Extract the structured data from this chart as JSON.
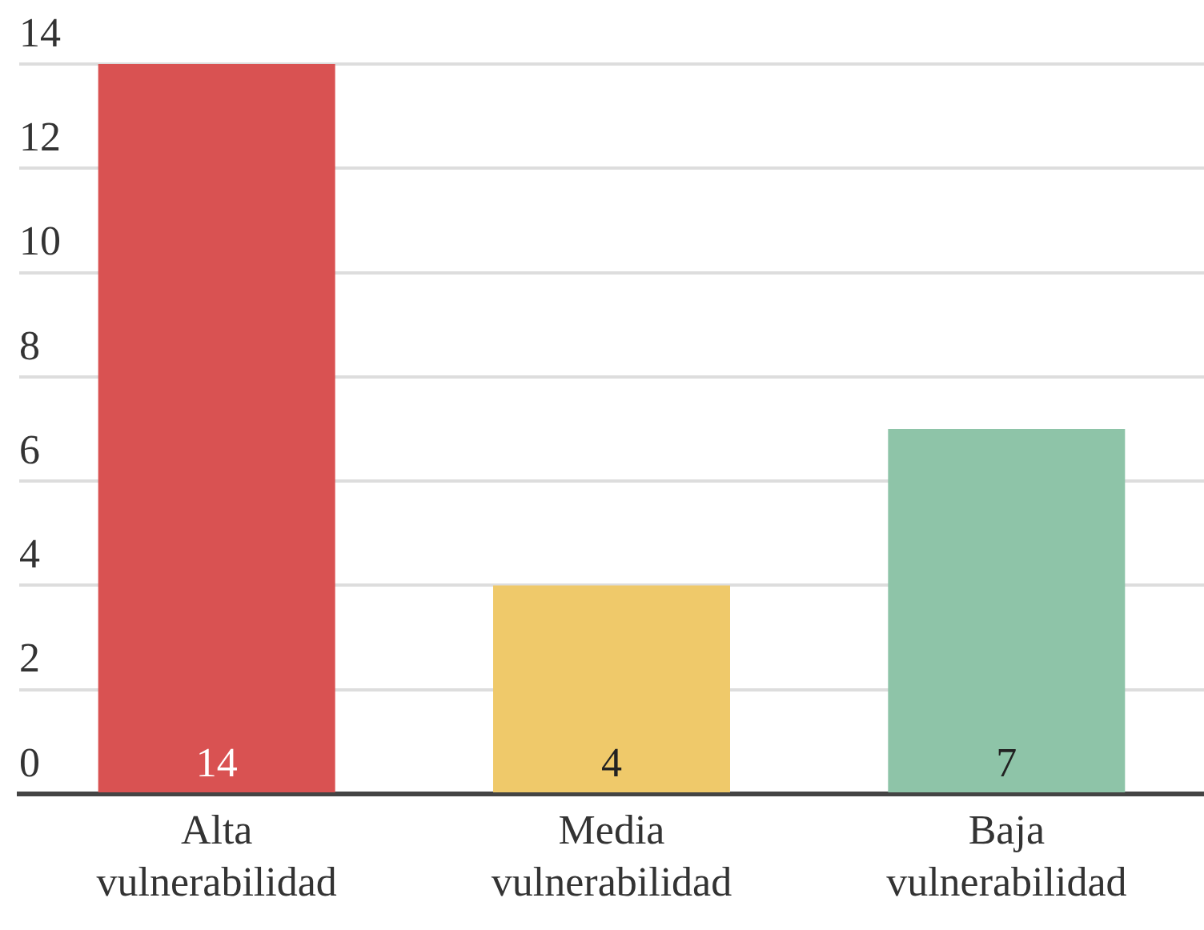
{
  "chart_data": {
    "type": "bar",
    "categories": [
      "Alta vulnerabilidad",
      "Media vulnerabilidad",
      "Baja vulnerabilidad"
    ],
    "values": [
      14,
      4,
      7
    ],
    "colors": [
      "#d95252",
      "#efc96a",
      "#8ec4a8"
    ],
    "ylim": [
      0,
      14
    ],
    "yticks": [
      0,
      2,
      4,
      6,
      8,
      10,
      12,
      14
    ],
    "grid": "y",
    "legend": false,
    "data_labels": true
  }
}
